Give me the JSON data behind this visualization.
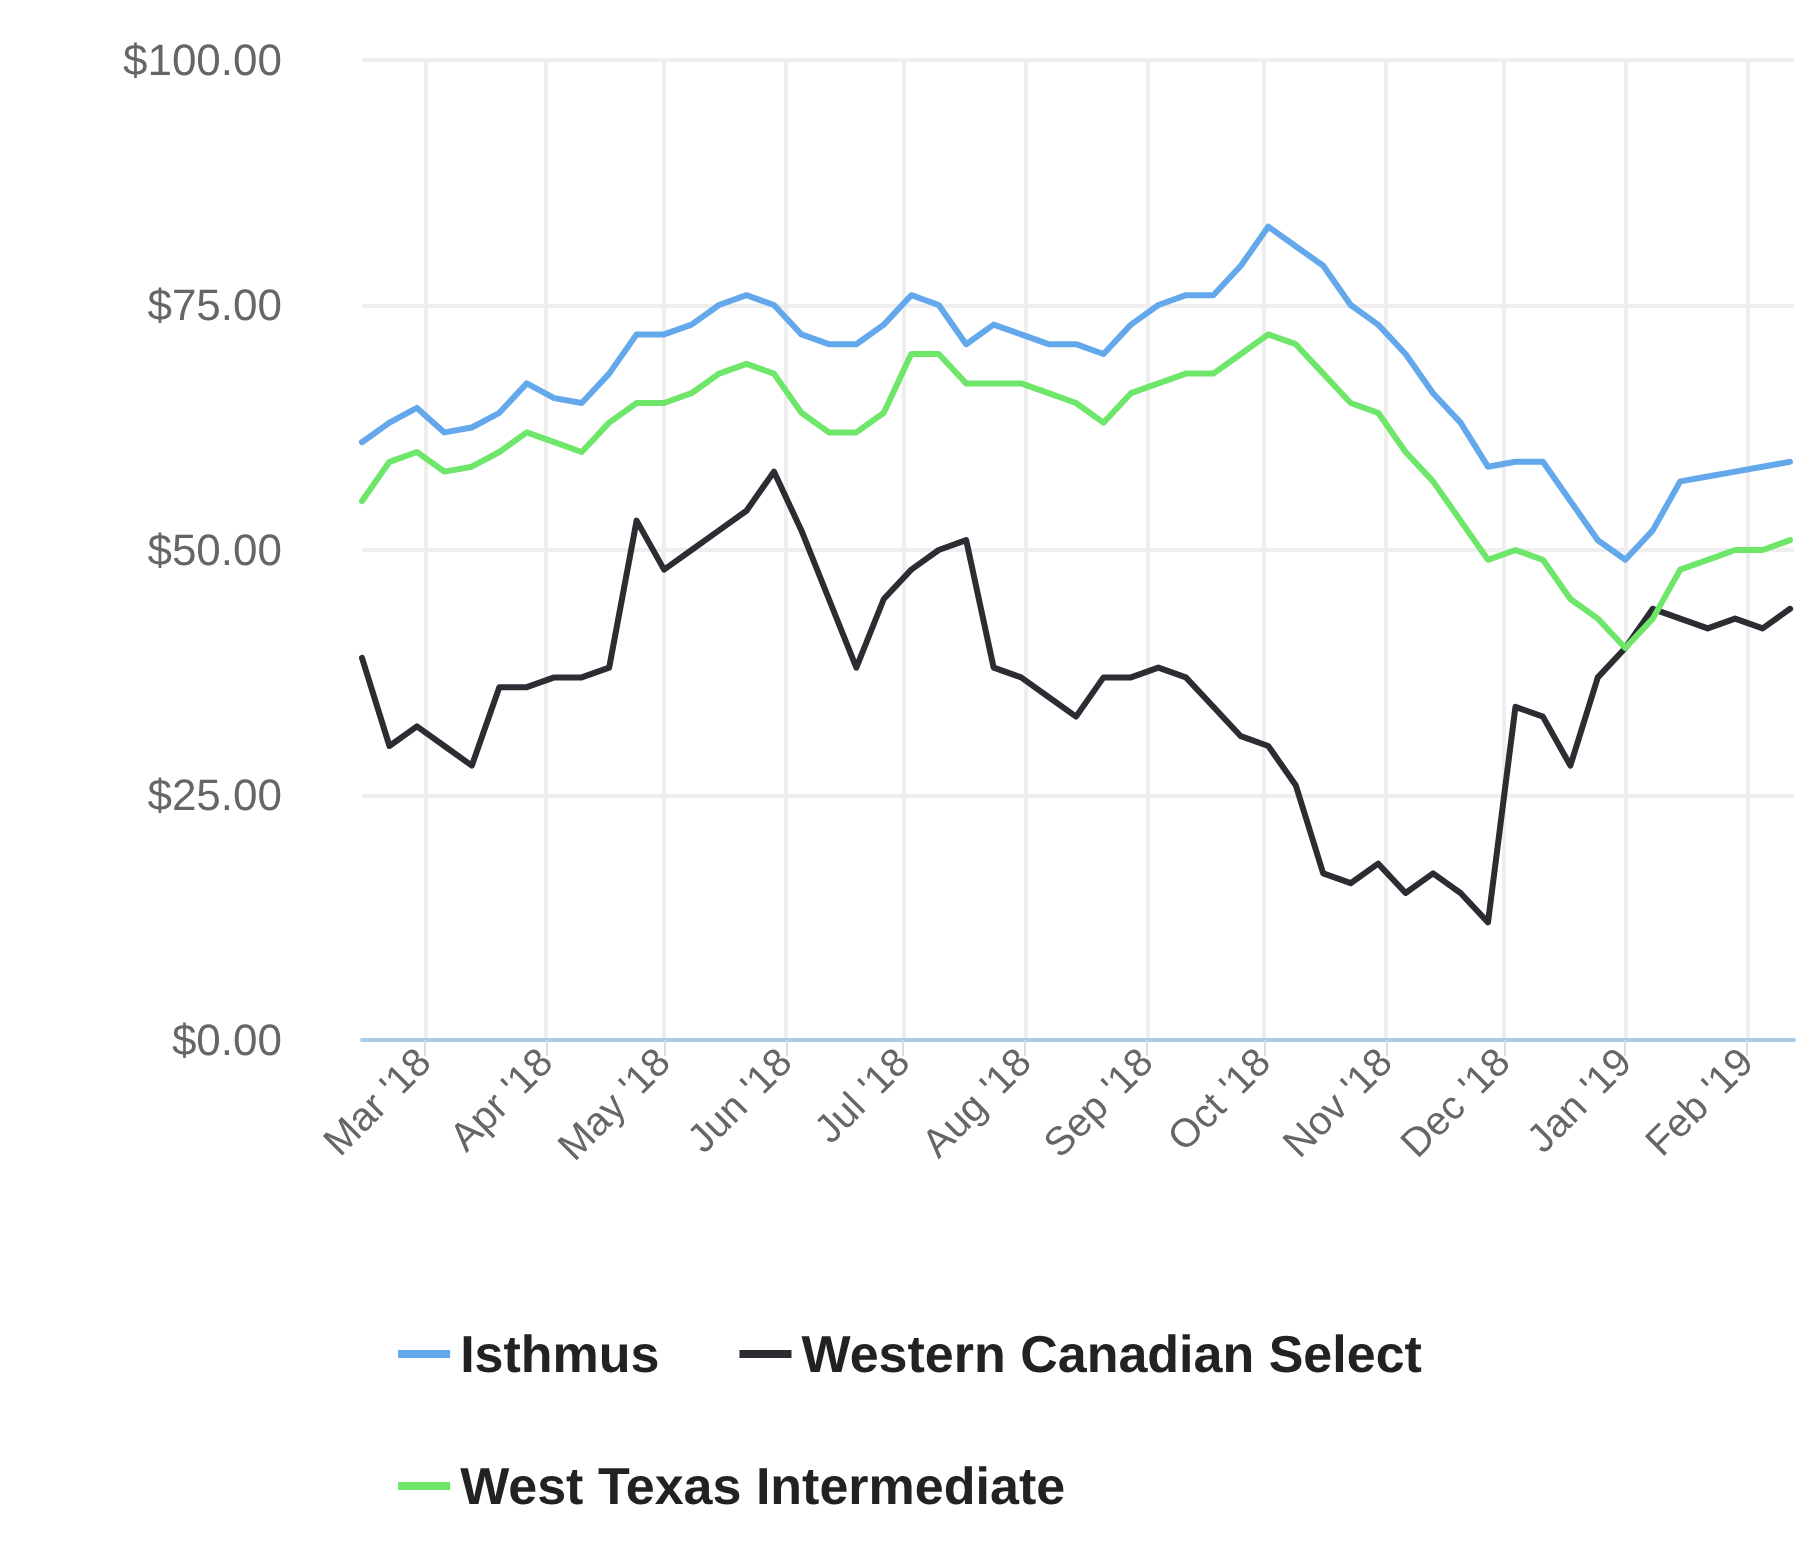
{
  "chart_data": {
    "type": "line",
    "x": [
      "2018-02-13",
      "2018-02-20",
      "2018-02-27",
      "2018-03-06",
      "2018-03-13",
      "2018-03-20",
      "2018-03-27",
      "2018-04-03",
      "2018-04-10",
      "2018-04-17",
      "2018-04-24",
      "2018-05-01",
      "2018-05-08",
      "2018-05-15",
      "2018-05-22",
      "2018-05-29",
      "2018-06-05",
      "2018-06-12",
      "2018-06-19",
      "2018-06-26",
      "2018-07-03",
      "2018-07-10",
      "2018-07-17",
      "2018-07-24",
      "2018-07-31",
      "2018-08-07",
      "2018-08-14",
      "2018-08-21",
      "2018-08-28",
      "2018-09-04",
      "2018-09-11",
      "2018-09-18",
      "2018-09-25",
      "2018-10-02",
      "2018-10-09",
      "2018-10-16",
      "2018-10-23",
      "2018-10-30",
      "2018-11-06",
      "2018-11-13",
      "2018-11-20",
      "2018-11-27",
      "2018-12-04",
      "2018-12-11",
      "2018-12-18",
      "2018-12-25",
      "2019-01-01",
      "2019-01-08",
      "2019-01-15",
      "2019-01-22",
      "2019-01-29",
      "2019-02-05",
      "2019-02-12"
    ],
    "series": [
      {
        "name": "Isthmus",
        "color": "#64a8ec",
        "values": [
          61,
          63,
          64.5,
          62,
          62.5,
          64,
          67,
          65.5,
          65,
          68,
          72,
          72,
          73,
          75,
          76,
          75,
          72,
          71,
          71,
          73,
          76,
          75,
          71,
          73,
          72,
          71,
          71,
          70,
          73,
          75,
          76,
          76,
          79,
          83,
          81,
          79,
          75,
          73,
          70,
          66,
          63,
          58.5,
          59,
          59,
          55,
          51,
          49,
          52,
          57,
          57.5,
          58,
          58.5,
          59
        ]
      },
      {
        "name": "Western Canadian Select",
        "color": "#2b2d33",
        "values": [
          39,
          30,
          32,
          30,
          28,
          36,
          36,
          37,
          37,
          38,
          53,
          48,
          50,
          52,
          54,
          58,
          52,
          45,
          38,
          45,
          48,
          50,
          51,
          38,
          37,
          35,
          33,
          37,
          37,
          38,
          37,
          34,
          31,
          30,
          26,
          17,
          16,
          18,
          15,
          17,
          15,
          12,
          34,
          33,
          28,
          37,
          40,
          44,
          43,
          42,
          43,
          42,
          44
        ]
      },
      {
        "name": "West Texas Intermediate",
        "color": "#6ee66a",
        "values": [
          55,
          59,
          60,
          58,
          58.5,
          60,
          62,
          61,
          60,
          63,
          65,
          65,
          66,
          68,
          69,
          68,
          64,
          62,
          62,
          64,
          70,
          70,
          67,
          67,
          67,
          66,
          65,
          63,
          66,
          67,
          68,
          68,
          70,
          72,
          71,
          68,
          65,
          64,
          60,
          57,
          53,
          49,
          50,
          49,
          45,
          43,
          40,
          43,
          48,
          49,
          50,
          50,
          51
        ]
      }
    ],
    "xlim": [
      "2018-02-13",
      "2019-02-13"
    ],
    "xticks": [
      {
        "value": "2018-03-01",
        "label": "Mar '18"
      },
      {
        "value": "2018-04-01",
        "label": "Apr '18"
      },
      {
        "value": "2018-05-01",
        "label": "May '18"
      },
      {
        "value": "2018-06-01",
        "label": "Jun '18"
      },
      {
        "value": "2018-07-01",
        "label": "Jul '18"
      },
      {
        "value": "2018-08-01",
        "label": "Aug '18"
      },
      {
        "value": "2018-09-01",
        "label": "Sep '18"
      },
      {
        "value": "2018-10-01",
        "label": "Oct '18"
      },
      {
        "value": "2018-11-01",
        "label": "Nov '18"
      },
      {
        "value": "2018-12-01",
        "label": "Dec '18"
      },
      {
        "value": "2019-01-01",
        "label": "Jan '19"
      },
      {
        "value": "2019-02-01",
        "label": "Feb '19"
      }
    ],
    "ylim": [
      0,
      100
    ],
    "yticks": [
      {
        "value": 0,
        "label": "$0.00"
      },
      {
        "value": 25,
        "label": "$25.00"
      },
      {
        "value": 50,
        "label": "$50.00"
      },
      {
        "value": 75,
        "label": "$75.00"
      },
      {
        "value": 100,
        "label": "$100.00"
      }
    ],
    "grid": true,
    "legend": "bottom",
    "marker": "none",
    "line_style": "solid"
  }
}
